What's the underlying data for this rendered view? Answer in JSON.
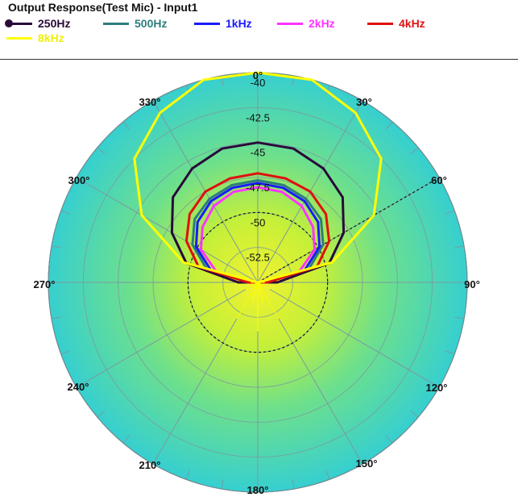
{
  "title": "Output Response(Test Mic) - Input1",
  "legend": [
    {
      "label": "250Hz",
      "color": "#2a0a3a",
      "marker": true
    },
    {
      "label": "500Hz",
      "color": "#2e7d7d"
    },
    {
      "label": "1kHz",
      "color": "#1a1aff"
    },
    {
      "label": "2kHz",
      "color": "#ff33ff"
    },
    {
      "label": "4kHz",
      "color": "#e01010"
    },
    {
      "label": "8kHz",
      "color": "#ffff00"
    }
  ],
  "chart_data": {
    "type": "polar",
    "title": "Output Response(Test Mic) - Input1",
    "angle_labels": [
      "0°",
      "30°",
      "60°",
      "90°",
      "120°",
      "150°",
      "180°",
      "210°",
      "240°",
      "270°",
      "300°",
      "330°"
    ],
    "radial_labels": [
      "-40",
      "-42.5",
      "-45",
      "-47.5",
      "-50",
      "-52.5"
    ],
    "r_range": [
      -55,
      -40
    ],
    "angles_deg": [
      0,
      15,
      30,
      45,
      60,
      75,
      90,
      105,
      120,
      135,
      150,
      165,
      180,
      195,
      210,
      225,
      240,
      255,
      270,
      285,
      300,
      315,
      330,
      345
    ],
    "series": [
      {
        "name": "250Hz",
        "color": "#2a0a3a",
        "values": [
          -45.0,
          -45.1,
          -45.6,
          -46.4,
          -47.9,
          -49.7,
          -53.6,
          -55,
          -55,
          -55,
          -55,
          -55,
          -55,
          -55,
          -55,
          -55,
          -55,
          -55,
          -53.6,
          -49.7,
          -47.9,
          -46.4,
          -45.6,
          -45.1
        ]
      },
      {
        "name": "500Hz",
        "color": "#2e7d7d",
        "values": [
          -47.7,
          -47.8,
          -48.1,
          -48.6,
          -49.6,
          -51.2,
          -54.3,
          -55,
          -55,
          -55,
          -55,
          -55,
          -55,
          -55,
          -55,
          -55,
          -55,
          -55,
          -54.3,
          -51.2,
          -49.6,
          -48.6,
          -48.1,
          -47.8
        ]
      },
      {
        "name": "1kHz",
        "color": "#1a1aff",
        "values": [
          -47.9,
          -48.0,
          -48.3,
          -48.9,
          -49.9,
          -51.5,
          -54.6,
          -55,
          -55,
          -55,
          -55,
          -55,
          -55,
          -55,
          -55,
          -55,
          -55,
          -55,
          -54.6,
          -51.5,
          -49.9,
          -48.9,
          -48.3,
          -48.0
        ]
      },
      {
        "name": "2kHz",
        "color": "#ff33ff",
        "values": [
          -48.2,
          -48.3,
          -48.7,
          -49.4,
          -50.3,
          -51.9,
          -54.7,
          -55,
          -55,
          -55,
          -55,
          -55,
          -55,
          -55,
          -55,
          -55,
          -55,
          -55,
          -54.7,
          -51.9,
          -50.3,
          -49.4,
          -48.7,
          -48.3
        ]
      },
      {
        "name": "4kHz",
        "color": "#e01010",
        "values": [
          -47.2,
          -47.3,
          -47.5,
          -48.1,
          -49.1,
          -50.6,
          -54.3,
          -55,
          -55,
          -55,
          -55,
          -55,
          -55,
          -55,
          -55,
          -55,
          -55,
          -55,
          -54.3,
          -50.6,
          -49.1,
          -48.1,
          -47.5,
          -47.3
        ]
      },
      {
        "name": "8kHz",
        "color": "#ffff00",
        "values": [
          -39.8,
          -39.9,
          -41.0,
          -42.5,
          -45.4,
          -49.5,
          -55,
          -55,
          -55,
          -55,
          -55,
          -55,
          -55,
          -55,
          -55,
          -55,
          -55,
          -55,
          -55,
          -49.5,
          -45.4,
          -42.5,
          -41.0,
          -39.9
        ]
      }
    ],
    "dashed_circle_level": -50,
    "grid": true
  }
}
